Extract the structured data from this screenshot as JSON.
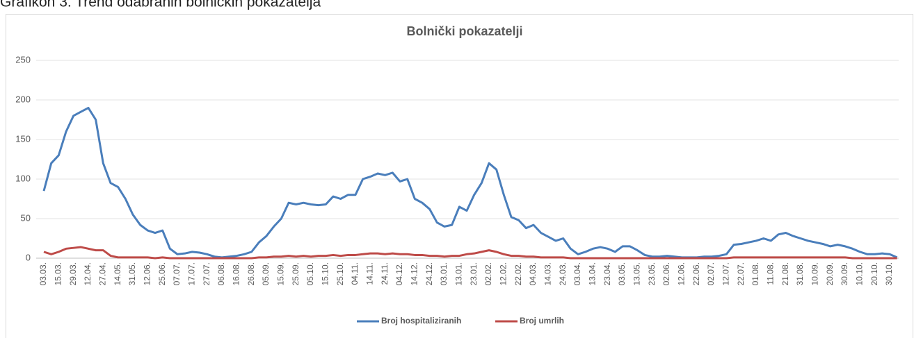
{
  "caption": "Grafikon 3. Trend odabranih bolničkih pokazatelja",
  "chart_data": {
    "type": "line",
    "title": "Bolnički pokazatelji",
    "categories": [
      "03.03.",
      null,
      "15.03.",
      null,
      "29.03.",
      null,
      "12.04.",
      null,
      "27.04.",
      null,
      "14.05.",
      null,
      "31.05.",
      null,
      "12.06.",
      null,
      "25.06.",
      null,
      "07.07.",
      null,
      "17.07.",
      null,
      "27.07.",
      null,
      "06.08.",
      null,
      "16.08.",
      null,
      "26.08.",
      null,
      "05.09.",
      null,
      "15.09.",
      null,
      "25.09.",
      null,
      "05.10.",
      null,
      "15.10.",
      null,
      "25.10.",
      null,
      "04.11.",
      null,
      "14.11.",
      null,
      "24.11.",
      null,
      "04.12.",
      null,
      "14.12.",
      null,
      "24.12.",
      null,
      "03.01.",
      null,
      "13.01.",
      null,
      "23.01.",
      null,
      "02.02.",
      null,
      "12.02.",
      null,
      "22.02.",
      null,
      "04.03.",
      null,
      "14.03.",
      null,
      "24.03.",
      null,
      "03.04.",
      null,
      "13.04.",
      null,
      "23.04.",
      null,
      "03.05.",
      null,
      "13.05.",
      null,
      "23.05.",
      null,
      "02.06.",
      null,
      "12.06.",
      null,
      "22.06.",
      null,
      "02.07.",
      null,
      "12.07.",
      null,
      "22.07.",
      null,
      "01.08.",
      null,
      "11.08.",
      null,
      "21.08.",
      null,
      "31.08.",
      null,
      "10.09.",
      null,
      "20.09.",
      null,
      "30.09.",
      null,
      "10.10.",
      null,
      "20.10.",
      null,
      "30.10.",
      null
    ],
    "series": [
      {
        "name": "Broj hospitaliziranih",
        "color": "#4a7ebb",
        "values": [
          85,
          120,
          130,
          160,
          180,
          185,
          190,
          175,
          120,
          95,
          90,
          75,
          55,
          42,
          35,
          32,
          35,
          12,
          5,
          6,
          8,
          7,
          5,
          2,
          1,
          2,
          3,
          5,
          8,
          20,
          28,
          40,
          50,
          70,
          68,
          70,
          68,
          67,
          68,
          78,
          75,
          80,
          80,
          100,
          103,
          107,
          105,
          108,
          97,
          100,
          75,
          70,
          62,
          45,
          40,
          42,
          65,
          60,
          80,
          95,
          120,
          112,
          80,
          52,
          48,
          38,
          42,
          32,
          27,
          22,
          25,
          12,
          5,
          8,
          12,
          14,
          12,
          8,
          15,
          15,
          10,
          4,
          2,
          2,
          3,
          2,
          1,
          1,
          1,
          2,
          2,
          3,
          5,
          17,
          18,
          20,
          22,
          25,
          22,
          30,
          32,
          28,
          25,
          22,
          20,
          18,
          15,
          17,
          15,
          12,
          8,
          5,
          5,
          6,
          5,
          1
        ]
      },
      {
        "name": "Broj umrlih",
        "color": "#be4b48",
        "values": [
          8,
          5,
          8,
          12,
          13,
          14,
          12,
          10,
          10,
          3,
          1,
          1,
          1,
          1,
          1,
          0,
          1,
          0,
          0,
          0,
          0,
          0,
          0,
          0,
          0,
          0,
          0,
          0,
          0,
          1,
          1,
          2,
          2,
          3,
          2,
          3,
          2,
          3,
          3,
          4,
          3,
          4,
          4,
          5,
          6,
          6,
          5,
          6,
          5,
          5,
          4,
          4,
          3,
          3,
          2,
          3,
          3,
          5,
          6,
          8,
          10,
          8,
          5,
          3,
          3,
          2,
          2,
          1,
          1,
          1,
          1,
          0,
          0,
          0,
          0,
          0,
          0,
          0,
          0,
          0,
          0,
          0,
          0,
          0,
          0,
          0,
          0,
          0,
          0,
          0,
          0,
          0,
          0,
          1,
          1,
          1,
          1,
          1,
          1,
          1,
          1,
          1,
          1,
          1,
          1,
          1,
          1,
          1,
          1,
          0,
          0,
          0,
          0,
          0,
          0,
          0
        ]
      }
    ],
    "ylim": [
      0,
      250
    ],
    "yticks": [
      0,
      50,
      100,
      150,
      200,
      250
    ],
    "grid": true,
    "legend": "bottom"
  }
}
